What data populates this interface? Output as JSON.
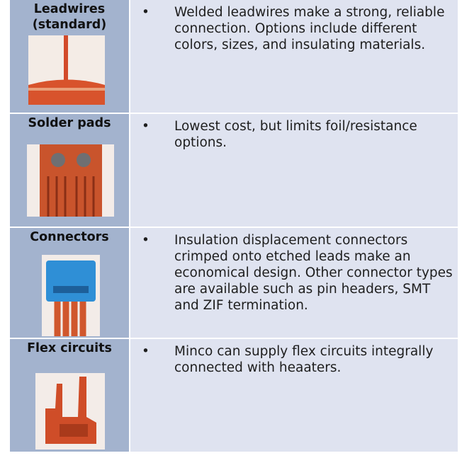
{
  "table": {
    "rows": [
      {
        "label": "Leadwires\n(standard)",
        "bullet": "•",
        "description": "Welded leadwires make a strong, reliable\nconnection. Options include different colors, sizes, and insulating materials."
      },
      {
        "label": "Solder pads",
        "bullet": "•",
        "description": "Lowest cost, but limits foil/resistance options."
      },
      {
        "label": "Connectors",
        "bullet": "•",
        "description": "Insulation displacement connectors crimped onto etched leads make an economical design. Other connector types are available such as pin headers, SMT and ZIF termination."
      },
      {
        "label": "Flex circuits",
        "bullet": "•",
        "description": "Minco can supply flex circuits integrally connected with heaaters."
      }
    ]
  }
}
